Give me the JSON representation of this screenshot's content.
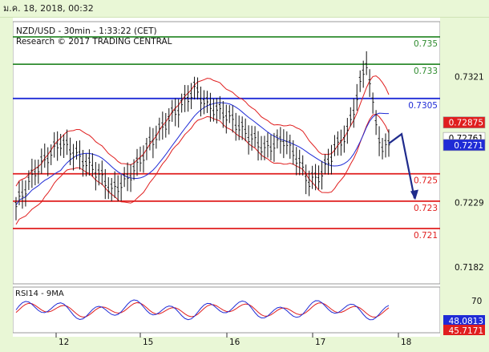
{
  "header": {
    "timestamp": "ม.ค. 18, 2018, 00:32"
  },
  "chart_data": {
    "type": "line",
    "symbol_line": "NZD/USD - 30min - 1:33:22 (CET)",
    "research_line": "Research © 2017 TRADING CENTRAL",
    "x_ticks": [
      "12",
      "15",
      "16",
      "17",
      "18"
    ],
    "price_axis_ticks": [
      "0.7321",
      "0.7229",
      "0.7182"
    ],
    "rsi_axis_ticks": [
      "70"
    ],
    "levels": [
      {
        "label": "0.735",
        "value": 0.735,
        "kind": "resistance-green"
      },
      {
        "label": "0.733",
        "value": 0.733,
        "kind": "resistance-green"
      },
      {
        "label": "0.7305",
        "value": 0.7305,
        "kind": "pivot-blue"
      },
      {
        "label": "0.725",
        "value": 0.725,
        "kind": "support-red"
      },
      {
        "label": "0.723",
        "value": 0.723,
        "kind": "support-red"
      },
      {
        "label": "0.721",
        "value": 0.721,
        "kind": "support-red"
      }
    ],
    "price_tags": [
      {
        "label": "0.72875",
        "value": 0.72875,
        "color": "#e01e1e",
        "text_color": "#ffffff"
      },
      {
        "label": "0.72761",
        "value": 0.72761,
        "color": "#ffffff",
        "text_color": "#000000"
      },
      {
        "label": "0.7271",
        "value": 0.7271,
        "color": "#1f2bd6",
        "text_color": "#ffffff"
      }
    ],
    "rsi": {
      "label": "RSI14 - 9MA",
      "tags": [
        {
          "label": "48.0813",
          "color": "#1f2bd6",
          "text_color": "#ffffff"
        },
        {
          "label": "45.7171",
          "color": "#e01e1e",
          "text_color": "#ffffff"
        }
      ]
    },
    "forecast_arrow": {
      "from": 0.7279,
      "to": 0.7232
    },
    "colors": {
      "resistance": "#2e8b2e",
      "pivot": "#1f2bd6",
      "support": "#e01e1e",
      "bollinger": "#e01e1e",
      "ma": "#1f2bd6",
      "candles": "#111111",
      "arrow": "#1f2b8c",
      "background_band": "#e9f7d6"
    }
  }
}
